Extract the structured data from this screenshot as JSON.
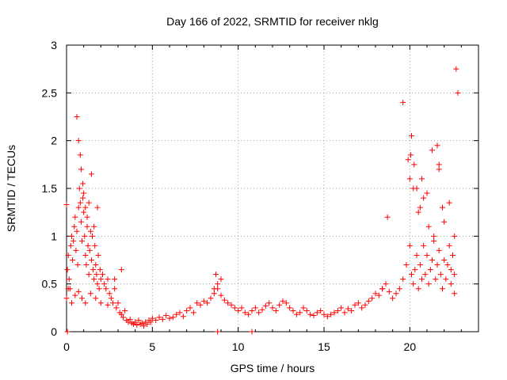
{
  "chart_data": {
    "type": "scatter",
    "title": "Day 166 of 2022, SRMTID for receiver nklg",
    "xlabel": "GPS time / hours",
    "ylabel": "SRMTID / TECUs",
    "xlim": [
      0,
      24
    ],
    "ylim": [
      0,
      3
    ],
    "xticks": [
      0,
      5,
      10,
      15,
      20
    ],
    "yticks": [
      0,
      0.5,
      1,
      1.5,
      2,
      2.5,
      3
    ],
    "x_tick_labels": [
      "0",
      "5",
      "10",
      "15",
      "20"
    ],
    "y_tick_labels": [
      "0",
      "0.5",
      "1",
      "1.5",
      "2",
      "2.5",
      "3"
    ],
    "grid": true,
    "marker": "plus",
    "color": "#ff0000",
    "series": [
      {
        "name": "SRMTID",
        "x": [
          0.05,
          0.1,
          0.15,
          0.2,
          0.25,
          0.3,
          0.35,
          0.4,
          0.45,
          0.5,
          0.55,
          0.6,
          0.65,
          0.7,
          0.75,
          0.8,
          0.85,
          0.9,
          0.95,
          1.0,
          1.05,
          1.1,
          1.15,
          1.2,
          1.25,
          1.3,
          1.35,
          1.4,
          1.45,
          1.5,
          1.55,
          1.6,
          1.65,
          1.7,
          1.75,
          1.8,
          1.85,
          1.9,
          1.95,
          2.0,
          2.1,
          2.2,
          2.3,
          2.4,
          2.5,
          2.6,
          2.7,
          2.8,
          2.9,
          3.0,
          3.1,
          3.2,
          3.3,
          3.4,
          3.5,
          3.6,
          3.7,
          3.8,
          3.9,
          4.0,
          4.1,
          4.2,
          4.3,
          4.4,
          4.5,
          4.6,
          4.7,
          4.8,
          4.9,
          5.0,
          5.2,
          5.4,
          5.6,
          5.8,
          6.0,
          6.2,
          6.4,
          6.6,
          6.8,
          7.0,
          7.2,
          7.4,
          7.6,
          7.8,
          8.0,
          8.2,
          8.4,
          8.6,
          8.8,
          9.0,
          9.2,
          9.4,
          9.6,
          9.8,
          10.0,
          10.2,
          10.4,
          10.6,
          10.8,
          11.0,
          11.2,
          11.4,
          11.6,
          11.8,
          12.0,
          12.2,
          12.4,
          12.6,
          12.8,
          13.0,
          13.2,
          13.4,
          13.6,
          13.8,
          14.0,
          14.2,
          14.4,
          14.6,
          14.8,
          15.0,
          15.2,
          15.4,
          15.6,
          15.8,
          16.0,
          16.2,
          16.4,
          16.6,
          16.8,
          17.0,
          17.2,
          17.4,
          17.6,
          17.8,
          18.0,
          18.2,
          18.4,
          18.6,
          18.8,
          19.0,
          19.2,
          19.4,
          19.6,
          19.8,
          20.0,
          20.1,
          20.2,
          20.3,
          20.4,
          20.5,
          20.6,
          20.7,
          20.8,
          20.9,
          21.0,
          21.1,
          21.2,
          21.3,
          21.4,
          21.5,
          21.6,
          21.7,
          21.8,
          21.9,
          22.0,
          22.1,
          22.2,
          22.3,
          22.4,
          22.5,
          22.6,
          22.7,
          22.8,
          0.6,
          0.7,
          0.8,
          0.85,
          0.95,
          1.0,
          1.1,
          1.2,
          1.3,
          1.45,
          1.6,
          1.8,
          20.0,
          20.05,
          20.1,
          20.25,
          20.4,
          20.6,
          20.7,
          21.0,
          21.3,
          21.6,
          21.7,
          21.9,
          22.4,
          22.6,
          0.0,
          0.1,
          0.3,
          0.5,
          0.7,
          0.9,
          1.1,
          1.4,
          1.7,
          2.0,
          2.4,
          2.8,
          3.2,
          8.6,
          8.8,
          9.0,
          8.7,
          18.4,
          18.7,
          19.6,
          19.9,
          20.2,
          20.5,
          20.8,
          21.1,
          21.4,
          21.7,
          22.0,
          22.3,
          22.6,
          0.0,
          0.05,
          8.8,
          10.8
        ],
        "y": [
          0.65,
          0.8,
          0.55,
          0.45,
          0.9,
          1.0,
          0.75,
          0.95,
          1.1,
          1.2,
          0.85,
          1.05,
          0.7,
          1.3,
          1.5,
          1.35,
          1.15,
          0.95,
          1.4,
          1.25,
          1.0,
          0.8,
          0.7,
          1.1,
          0.9,
          0.6,
          0.85,
          1.05,
          0.75,
          1.0,
          0.65,
          0.55,
          0.9,
          0.7,
          0.6,
          0.5,
          0.8,
          0.45,
          0.65,
          0.55,
          0.6,
          0.5,
          0.45,
          0.55,
          0.4,
          0.35,
          0.3,
          0.45,
          0.25,
          0.3,
          0.2,
          0.18,
          0.15,
          0.22,
          0.12,
          0.1,
          0.13,
          0.09,
          0.08,
          0.1,
          0.07,
          0.12,
          0.08,
          0.09,
          0.06,
          0.1,
          0.08,
          0.12,
          0.1,
          0.14,
          0.12,
          0.15,
          0.13,
          0.17,
          0.14,
          0.15,
          0.18,
          0.2,
          0.16,
          0.22,
          0.25,
          0.2,
          0.3,
          0.28,
          0.32,
          0.3,
          0.35,
          0.4,
          0.45,
          0.38,
          0.33,
          0.3,
          0.28,
          0.25,
          0.22,
          0.25,
          0.2,
          0.18,
          0.22,
          0.25,
          0.2,
          0.23,
          0.27,
          0.3,
          0.25,
          0.22,
          0.28,
          0.32,
          0.3,
          0.25,
          0.22,
          0.18,
          0.2,
          0.25,
          0.22,
          0.18,
          0.17,
          0.2,
          0.22,
          0.18,
          0.16,
          0.18,
          0.2,
          0.22,
          0.25,
          0.2,
          0.24,
          0.22,
          0.28,
          0.3,
          0.25,
          0.28,
          0.32,
          0.35,
          0.4,
          0.38,
          0.45,
          0.5,
          0.42,
          0.35,
          0.4,
          0.45,
          0.55,
          0.7,
          0.9,
          0.6,
          0.5,
          0.65,
          0.8,
          0.45,
          0.7,
          0.55,
          0.9,
          0.6,
          0.8,
          0.5,
          0.65,
          0.75,
          0.95,
          0.55,
          0.7,
          0.85,
          0.6,
          0.45,
          0.75,
          0.55,
          0.7,
          0.9,
          0.65,
          0.8,
          0.6,
          2.75,
          2.5,
          2.25,
          2.0,
          1.85,
          1.7,
          1.55,
          1.45,
          1.3,
          1.2,
          1.35,
          1.65,
          1.1,
          1.3,
          1.6,
          1.85,
          2.05,
          1.75,
          1.5,
          1.3,
          1.6,
          1.45,
          1.9,
          1.95,
          1.7,
          1.3,
          0.5,
          0.4,
          0.35,
          0.45,
          0.3,
          0.38,
          0.42,
          0.35,
          0.3,
          0.4,
          0.35,
          0.3,
          0.28,
          0.55,
          0.65,
          0.45,
          0.5,
          0.55,
          0.6,
          0.45,
          1.2,
          2.4,
          1.8,
          1.5,
          1.25,
          1.4,
          1.1,
          1.0,
          1.75,
          1.15,
          1.35,
          1.0,
          1.33,
          0.0,
          0.0,
          0.0
        ]
      }
    ]
  }
}
